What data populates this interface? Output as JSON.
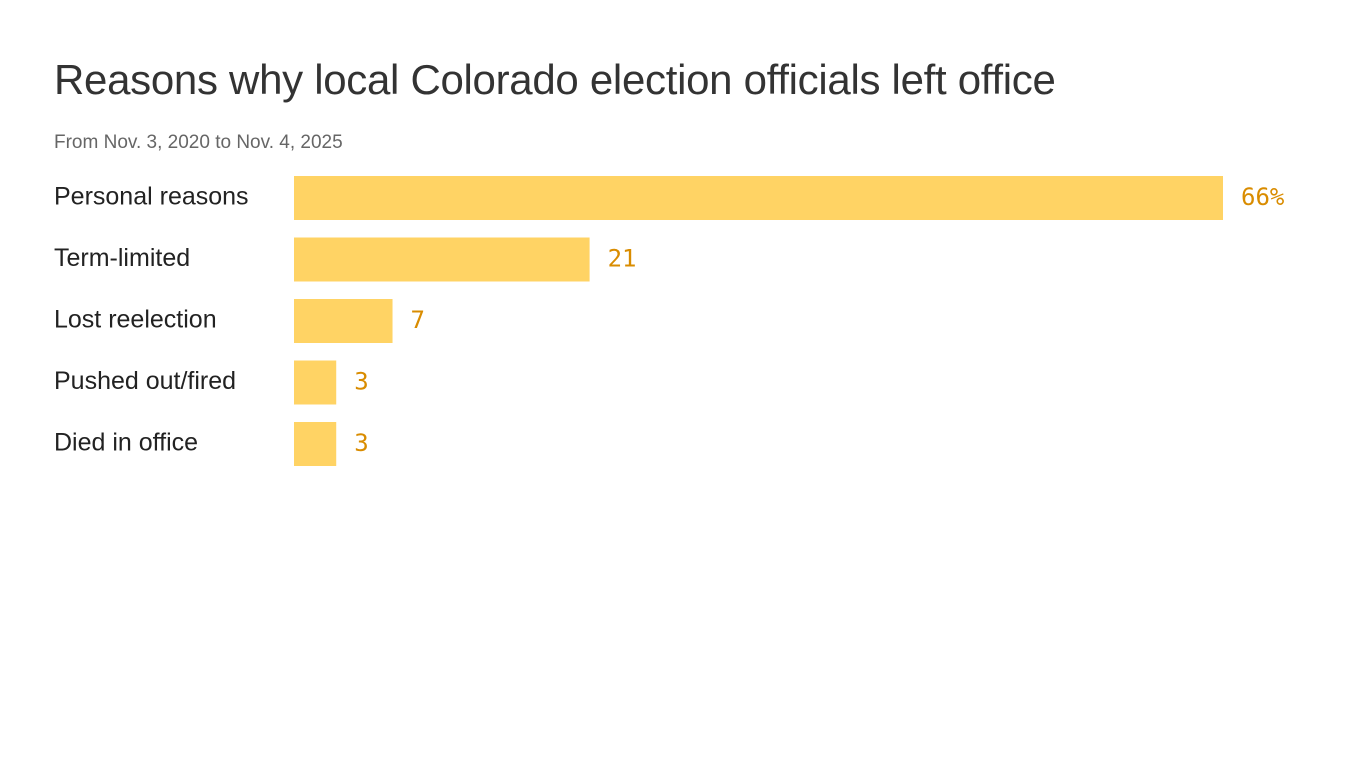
{
  "colors": {
    "bar": "#ffd364",
    "value_label": "#d98c00",
    "title": "#333333",
    "subtitle": "#666666",
    "category_label": "#222222"
  },
  "chart_data": {
    "type": "bar",
    "orientation": "horizontal",
    "title": "Reasons why local Colorado election officials left office",
    "subtitle": "From Nov. 3, 2020 to Nov. 4, 2025",
    "categories": [
      "Personal reasons",
      "Term-limited",
      "Lost reelection",
      "Pushed out/fired",
      "Died in office"
    ],
    "values": [
      66,
      21,
      7,
      3,
      3
    ],
    "value_labels": [
      "66%",
      "21",
      "7",
      "3",
      "3"
    ],
    "xlim": [
      0,
      66
    ],
    "grid": false,
    "legend": "none"
  }
}
